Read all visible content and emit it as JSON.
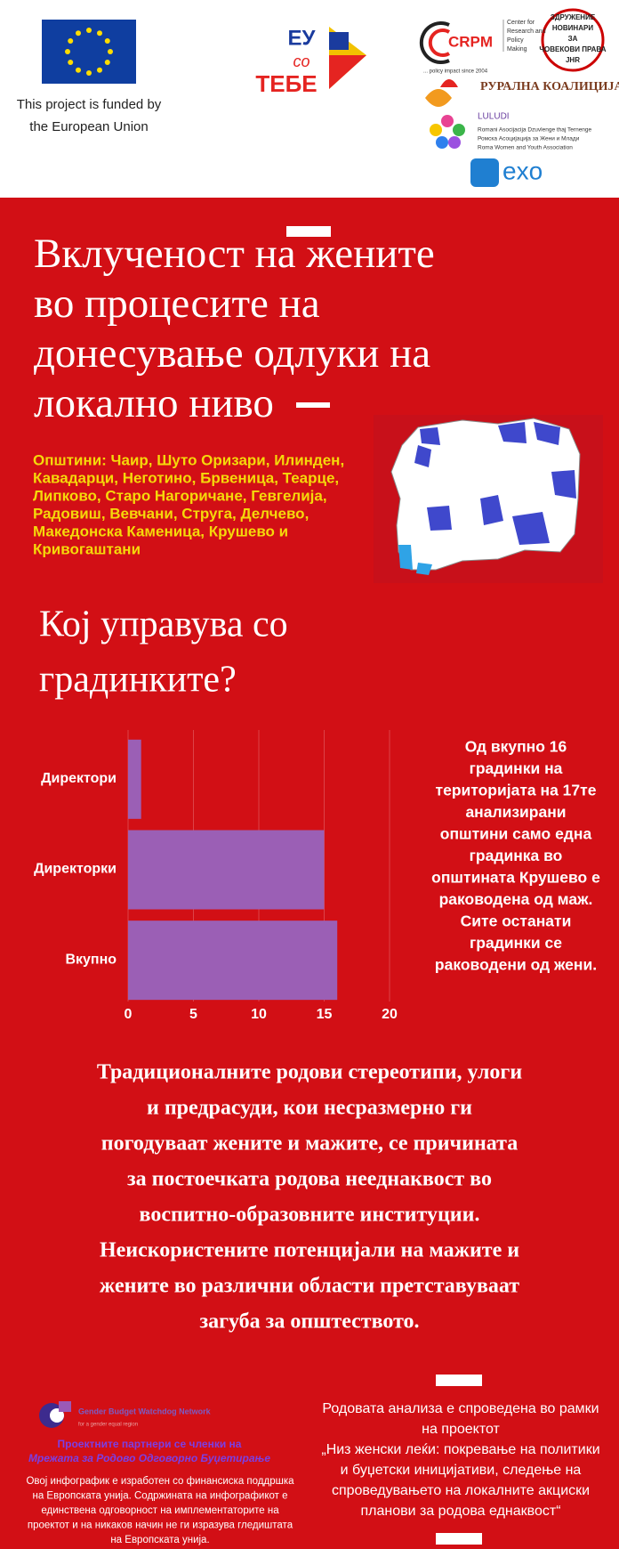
{
  "header": {
    "eu_text": [
      "This project is funded by",
      "the European Union"
    ],
    "eu_tebe": [
      "ЕУ",
      "со",
      "ТЕБЕ"
    ],
    "crpm": "CRPM",
    "crpm_sub": [
      "Center for",
      "Research and",
      "Policy",
      "Making"
    ],
    "crpm_tag": "... policy impact since 2004",
    "njhr": [
      "ЗДРУЖЕНИЕ",
      "НОВИНАРИ",
      "ЗА",
      "ЧОВЕКОВИ ПРАВА",
      "JHR"
    ],
    "rural": "РУРАЛНА КОАЛИЦИЈА",
    "luludi": "LULUDI",
    "luludi_sub": [
      "Romani Asocijacija Dzuvlenge thaj Ternenge",
      "Ромска Асоцијација за Жени и Млади",
      "Roma Women and Youth Association"
    ],
    "exo": "exo"
  },
  "title_lines": [
    "Вклученост на жените",
    "во процесите на",
    "донесување одлуки на",
    "локално ниво"
  ],
  "municipalities": [
    "Општини: Чаир, Шуто Оризари, Илинден,",
    "Кавадарци, Неготино, Брвеница, Теарце,",
    "Липково, Старо Нагоричане, Гевгелија,",
    "Радовиш, Вевчани, Струга, Делчево,",
    "Македонска Каменица,  Крушево и",
    "Кривогаштани"
  ],
  "chart_data": {
    "type": "bar",
    "orientation": "horizontal",
    "title": [
      "Кој управува со",
      "градинките?"
    ],
    "categories": [
      "Директори",
      "Директорки",
      "Вкупно"
    ],
    "values": [
      1,
      15,
      16
    ],
    "color": "#9b5fb5",
    "xlim": [
      0,
      20
    ],
    "xticks": [
      0,
      5,
      10,
      15,
      20
    ],
    "grid": true,
    "annotation": [
      "Од вкупно 16",
      "градинки на",
      "територијата на 17те",
      "анализирани",
      "општини само една",
      "градинка во",
      "општината Крушево е",
      "раководена од маж.",
      "Сите останати",
      "градинки се",
      "раководени од жени."
    ]
  },
  "paragraph": [
    "Традиционалните родови стереотипи, улоги",
    "и предрасуди, кои несразмерно ги",
    "погодуваат  жените и мажите, се причината",
    "за постоечката родова нееднаквост во",
    "воспитно-образовните институции.",
    "Неискористените потенцијали на мажите и",
    "жените во различни области  претставуваат",
    "загуба за општеството."
  ],
  "footer": {
    "network": "Gender Budget Watchdog Network",
    "network_tag": "for a gender equal region",
    "partners": [
      "Проектните партнери се членки на",
      "Мрежата за Родово Одговорно Буџетирање"
    ],
    "disclaimer": [
      "Овој инфографик е изработен со финансиска поддршка",
      "на Европската унија. Содржината на инфографикот е",
      "единствена одговорност на имплементаторите на",
      "проектот и на никаков начин не ги изразува гледиштата",
      "на Европската унија."
    ],
    "project": [
      "Родовата анализа е спроведена во рамки",
      "на проектот",
      "„Низ женски леќи: покревање на политики",
      "и буџетски иницијативи, следење на",
      "спроведувањето на локалните акциски",
      "планови за родова еднаквост“"
    ]
  }
}
